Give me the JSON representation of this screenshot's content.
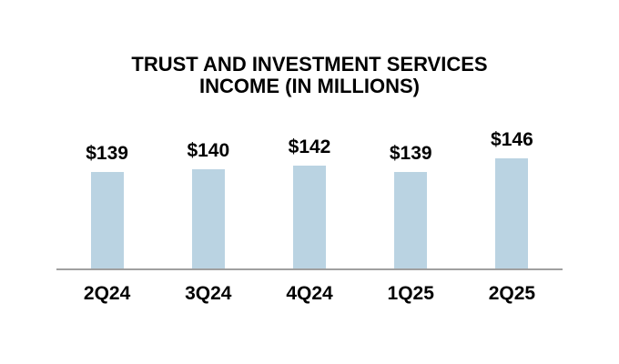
{
  "page": {
    "background_color": "#FFFFFF"
  },
  "chart_data": {
    "type": "bar",
    "title": "TRUST AND INVESTMENT SERVICES INCOME (IN MILLIONS)",
    "title_lines": [
      "TRUST AND INVESTMENT SERVICES",
      "INCOME (IN MILLIONS)"
    ],
    "categories": [
      "2Q24",
      "3Q24",
      "4Q24",
      "1Q25",
      "2Q25"
    ],
    "values": [
      139,
      140,
      142,
      139,
      146
    ],
    "data_labels": [
      "$139",
      "$140",
      "$142",
      "$139",
      "$146"
    ],
    "xlabel": "",
    "ylabel": "",
    "ylim": [
      87,
      150
    ],
    "grid": false,
    "legend": false,
    "bar_color": "#BAD3E2",
    "axis_line_color": "#A0A0A0",
    "text_color": "#000000"
  }
}
